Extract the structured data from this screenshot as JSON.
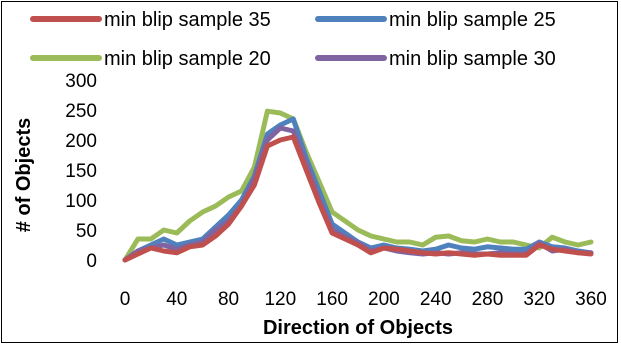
{
  "chart_data": {
    "type": "line",
    "title": "",
    "xlabel": "Direction of Objects",
    "ylabel": "# of Objects",
    "xlim": [
      0,
      360
    ],
    "ylim": [
      0,
      300
    ],
    "xticks": [
      0,
      40,
      80,
      120,
      160,
      200,
      240,
      280,
      320,
      360
    ],
    "yticks": [
      0,
      50,
      100,
      150,
      200,
      250,
      300
    ],
    "grid": false,
    "legend_position": "top",
    "x": [
      0,
      10,
      20,
      30,
      40,
      50,
      60,
      70,
      80,
      90,
      100,
      110,
      120,
      130,
      140,
      150,
      160,
      170,
      180,
      190,
      200,
      210,
      220,
      230,
      240,
      250,
      260,
      270,
      280,
      290,
      300,
      310,
      320,
      330,
      340,
      350,
      360
    ],
    "series": [
      {
        "name": "min blip sample 35",
        "color": "#c0504d",
        "values": [
          0,
          10,
          20,
          15,
          12,
          22,
          25,
          40,
          60,
          90,
          125,
          190,
          200,
          205,
          150,
          95,
          45,
          35,
          25,
          12,
          20,
          18,
          15,
          12,
          10,
          12,
          10,
          8,
          10,
          8,
          8,
          8,
          25,
          18,
          15,
          12,
          10
        ]
      },
      {
        "name": "min blip sample 25",
        "color": "#4f81bd",
        "values": [
          0,
          15,
          25,
          35,
          25,
          30,
          35,
          55,
          75,
          100,
          140,
          210,
          225,
          235,
          170,
          115,
          60,
          45,
          30,
          20,
          25,
          20,
          18,
          15,
          18,
          25,
          20,
          18,
          22,
          20,
          18,
          18,
          30,
          22,
          20,
          15,
          12
        ]
      },
      {
        "name": "min blip sample 20",
        "color": "#9bbb59",
        "values": [
          0,
          35,
          35,
          50,
          45,
          65,
          80,
          90,
          105,
          115,
          155,
          248,
          245,
          235,
          180,
          130,
          80,
          65,
          50,
          40,
          35,
          30,
          30,
          25,
          38,
          40,
          32,
          30,
          35,
          30,
          30,
          25,
          20,
          38,
          30,
          25,
          30
        ]
      },
      {
        "name": "min blip sample 30",
        "color": "#8064a2",
        "values": [
          0,
          15,
          20,
          25,
          18,
          25,
          30,
          50,
          65,
          90,
          135,
          200,
          220,
          215,
          160,
          100,
          50,
          38,
          28,
          15,
          20,
          15,
          12,
          10,
          12,
          10,
          12,
          10,
          10,
          12,
          10,
          10,
          28,
          15,
          18,
          12,
          12
        ]
      }
    ]
  }
}
